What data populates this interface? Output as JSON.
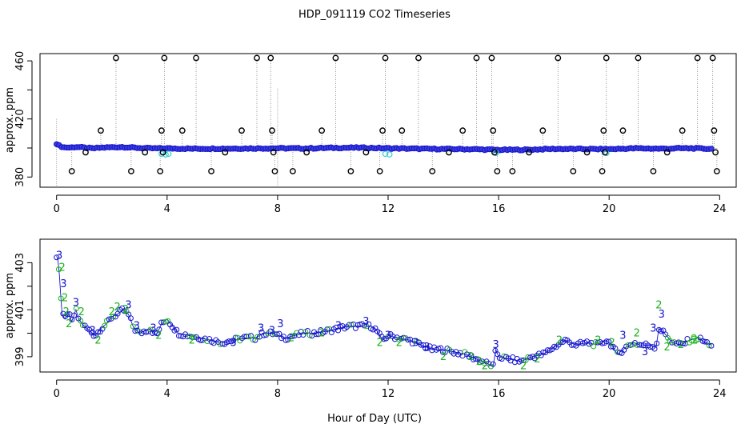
{
  "chart_data": {
    "title": "HDP_091119  CO2 Timeseries",
    "xlabel": "Hour of Day (UTC)",
    "colors": {
      "series_main": "#1414cc",
      "series_alt": "#19b419",
      "series_cyan": "#33cccc",
      "outlier": "#000000",
      "dotted_line": "#888888"
    },
    "panels": [
      {
        "type": "scatter",
        "name": "overview",
        "ylabel": "approx. ppm",
        "xlim": [
          -0.6,
          24.6
        ],
        "ylim": [
          373,
          465
        ],
        "x_ticks": [
          0,
          4,
          8,
          12,
          16,
          20,
          24
        ],
        "y_ticks": [
          380,
          420,
          460
        ],
        "y_minor_ticks": [
          400,
          440
        ],
        "trace_points": [
          [
            0,
            403
          ],
          [
            0.1,
            401.5
          ],
          [
            0.25,
            400.5
          ],
          [
            0.5,
            400.3
          ],
          [
            0.7,
            400.8
          ],
          [
            1.0,
            400.2
          ],
          [
            1.3,
            399.7
          ],
          [
            1.6,
            400.2
          ],
          [
            2.0,
            400.5
          ],
          [
            2.4,
            400.7
          ],
          [
            2.8,
            400.2
          ],
          [
            3.3,
            399.8
          ],
          [
            3.7,
            399.7
          ],
          [
            4.0,
            399.8
          ],
          [
            4.4,
            399.6
          ],
          [
            5.0,
            399.5
          ],
          [
            6.0,
            399.6
          ],
          [
            7.0,
            399.7
          ],
          [
            8.0,
            399.8
          ],
          [
            9.0,
            399.7
          ],
          [
            10.0,
            400.1
          ],
          [
            11.0,
            400.2
          ],
          [
            12.0,
            399.8
          ],
          [
            13.0,
            399.5
          ],
          [
            14.0,
            399.3
          ],
          [
            15.0,
            399.2
          ],
          [
            15.6,
            398.9
          ],
          [
            16.0,
            398.7
          ],
          [
            17.0,
            398.8
          ],
          [
            18.0,
            399.4
          ],
          [
            19.0,
            399.3
          ],
          [
            20.0,
            399.2
          ],
          [
            21.0,
            399.8
          ],
          [
            21.5,
            399.6
          ],
          [
            22.0,
            399.5
          ],
          [
            22.5,
            399.8
          ],
          [
            23.0,
            399.8
          ],
          [
            23.7,
            399.4
          ]
        ],
        "cyan_points": [
          [
            3.8,
            396
          ],
          [
            3.95,
            395.5
          ],
          [
            4.05,
            396
          ],
          [
            11.9,
            396
          ],
          [
            12.05,
            395.6
          ],
          [
            15.9,
            396.5
          ],
          [
            19.9,
            396.5
          ]
        ],
        "outliers": [
          [
            0.55,
            384
          ],
          [
            1.05,
            397
          ],
          [
            1.6,
            412
          ],
          [
            2.15,
            462
          ],
          [
            2.7,
            384
          ],
          [
            3.2,
            397
          ],
          [
            3.75,
            384
          ],
          [
            3.85,
            397
          ],
          [
            3.8,
            412
          ],
          [
            3.9,
            462
          ],
          [
            4.55,
            412
          ],
          [
            5.05,
            462
          ],
          [
            5.6,
            384
          ],
          [
            6.1,
            397
          ],
          [
            6.7,
            412
          ],
          [
            7.25,
            462
          ],
          [
            7.75,
            462
          ],
          [
            7.8,
            412
          ],
          [
            7.85,
            397
          ],
          [
            7.9,
            384
          ],
          [
            8.55,
            384
          ],
          [
            9.05,
            397
          ],
          [
            9.6,
            412
          ],
          [
            10.1,
            462
          ],
          [
            10.65,
            384
          ],
          [
            11.2,
            397
          ],
          [
            11.7,
            384
          ],
          [
            11.8,
            412
          ],
          [
            11.9,
            462
          ],
          [
            12.5,
            412
          ],
          [
            13.1,
            462
          ],
          [
            13.6,
            384
          ],
          [
            14.2,
            397
          ],
          [
            14.7,
            412
          ],
          [
            15.2,
            462
          ],
          [
            15.75,
            462
          ],
          [
            15.8,
            412
          ],
          [
            15.85,
            397
          ],
          [
            15.95,
            384
          ],
          [
            16.5,
            384
          ],
          [
            17.1,
            397
          ],
          [
            17.6,
            412
          ],
          [
            18.15,
            462
          ],
          [
            18.7,
            384
          ],
          [
            19.2,
            397
          ],
          [
            19.75,
            384
          ],
          [
            19.8,
            412
          ],
          [
            19.85,
            397
          ],
          [
            19.9,
            462
          ],
          [
            20.5,
            412
          ],
          [
            21.05,
            462
          ],
          [
            21.6,
            384
          ],
          [
            22.1,
            397
          ],
          [
            22.65,
            412
          ],
          [
            23.2,
            462
          ],
          [
            23.75,
            462
          ],
          [
            23.8,
            412
          ],
          [
            23.85,
            397
          ],
          [
            23.9,
            384
          ]
        ]
      },
      {
        "type": "scatter",
        "name": "detail",
        "ylabel": "approx. ppm",
        "xlim": [
          -0.6,
          24.6
        ],
        "ylim": [
          398.35,
          404.0
        ],
        "x_ticks": [
          0,
          4,
          8,
          12,
          16,
          20,
          24
        ],
        "y_ticks": [
          399,
          401,
          403
        ],
        "y_minor_ticks": [
          400,
          402
        ],
        "trace_points": [
          [
            0.0,
            403.3
          ],
          [
            0.05,
            403.1
          ],
          [
            0.1,
            402.5
          ],
          [
            0.15,
            401.6
          ],
          [
            0.2,
            400.8
          ],
          [
            0.3,
            400.6
          ],
          [
            0.4,
            400.9
          ],
          [
            0.55,
            400.5
          ],
          [
            0.7,
            401.0
          ],
          [
            0.8,
            400.6
          ],
          [
            1.0,
            400.3
          ],
          [
            1.2,
            400.1
          ],
          [
            1.4,
            399.9
          ],
          [
            1.6,
            400.2
          ],
          [
            1.8,
            400.4
          ],
          [
            2.0,
            400.7
          ],
          [
            2.2,
            400.8
          ],
          [
            2.4,
            401.0
          ],
          [
            2.6,
            400.8
          ],
          [
            2.8,
            400.2
          ],
          [
            3.0,
            400.0
          ],
          [
            3.2,
            400.1
          ],
          [
            3.4,
            400.2
          ],
          [
            3.6,
            399.9
          ],
          [
            3.8,
            400.4
          ],
          [
            4.0,
            400.6
          ],
          [
            4.2,
            400.3
          ],
          [
            4.4,
            400.0
          ],
          [
            4.8,
            399.9
          ],
          [
            5.2,
            399.8
          ],
          [
            5.6,
            399.7
          ],
          [
            6.0,
            399.6
          ],
          [
            6.4,
            399.7
          ],
          [
            6.8,
            399.8
          ],
          [
            7.2,
            399.8
          ],
          [
            7.5,
            400.0
          ],
          [
            7.8,
            400.0
          ],
          [
            8.0,
            399.9
          ],
          [
            8.3,
            399.8
          ],
          [
            8.6,
            399.9
          ],
          [
            9.0,
            400.0
          ],
          [
            9.4,
            400.0
          ],
          [
            9.8,
            400.1
          ],
          [
            10.2,
            400.2
          ],
          [
            10.6,
            400.3
          ],
          [
            11.0,
            400.3
          ],
          [
            11.4,
            400.3
          ],
          [
            11.6,
            400.1
          ],
          [
            11.8,
            399.7
          ],
          [
            12.0,
            399.9
          ],
          [
            12.4,
            399.8
          ],
          [
            12.8,
            399.7
          ],
          [
            13.2,
            399.5
          ],
          [
            13.6,
            399.3
          ],
          [
            14.0,
            399.3
          ],
          [
            14.4,
            399.2
          ],
          [
            14.8,
            399.1
          ],
          [
            15.2,
            398.9
          ],
          [
            15.6,
            398.7
          ],
          [
            15.8,
            398.6
          ],
          [
            15.9,
            399.3
          ],
          [
            16.0,
            399.0
          ],
          [
            16.4,
            398.9
          ],
          [
            16.8,
            398.8
          ],
          [
            17.2,
            399.0
          ],
          [
            17.6,
            399.1
          ],
          [
            18.0,
            399.4
          ],
          [
            18.4,
            399.7
          ],
          [
            18.8,
            399.5
          ],
          [
            19.2,
            399.6
          ],
          [
            19.6,
            399.5
          ],
          [
            19.9,
            399.7
          ],
          [
            20.1,
            399.5
          ],
          [
            20.3,
            399.1
          ],
          [
            20.6,
            399.4
          ],
          [
            20.9,
            399.6
          ],
          [
            21.1,
            399.5
          ],
          [
            21.4,
            399.5
          ],
          [
            21.7,
            399.4
          ],
          [
            21.8,
            400.2
          ],
          [
            22.0,
            400.0
          ],
          [
            22.3,
            399.6
          ],
          [
            22.6,
            399.5
          ],
          [
            22.9,
            399.7
          ],
          [
            23.2,
            399.8
          ],
          [
            23.5,
            399.6
          ],
          [
            23.7,
            399.5
          ]
        ],
        "label_points": [
          [
            0.1,
            403.3,
            "3"
          ],
          [
            0.2,
            402.8,
            "2"
          ],
          [
            0.25,
            402.1,
            "3"
          ],
          [
            0.3,
            401.5,
            "2"
          ],
          [
            0.35,
            400.9,
            "2"
          ],
          [
            0.45,
            400.4,
            "2"
          ],
          [
            0.7,
            401.3,
            "3"
          ],
          [
            0.9,
            400.9,
            "2"
          ],
          [
            1.3,
            400.1,
            "3"
          ],
          [
            1.5,
            399.7,
            "2"
          ],
          [
            2.0,
            400.9,
            "2"
          ],
          [
            2.2,
            401.1,
            "2"
          ],
          [
            2.5,
            401.0,
            "2"
          ],
          [
            2.6,
            401.2,
            "3"
          ],
          [
            2.9,
            400.3,
            "3"
          ],
          [
            3.5,
            400.2,
            "3"
          ],
          [
            3.7,
            399.9,
            "2"
          ],
          [
            4.9,
            399.7,
            "2"
          ],
          [
            6.4,
            399.6,
            "3"
          ],
          [
            7.4,
            400.2,
            "3"
          ],
          [
            7.8,
            400.1,
            "3"
          ],
          [
            8.1,
            400.4,
            "3"
          ],
          [
            8.5,
            399.8,
            "2"
          ],
          [
            9.6,
            400.0,
            "2"
          ],
          [
            10.2,
            400.3,
            "3"
          ],
          [
            11.2,
            400.5,
            "3"
          ],
          [
            11.7,
            399.6,
            "2"
          ],
          [
            12.0,
            399.9,
            "3"
          ],
          [
            12.4,
            399.6,
            "2"
          ],
          [
            13.0,
            399.6,
            "3"
          ],
          [
            13.4,
            399.4,
            "3"
          ],
          [
            14.0,
            399.0,
            "2"
          ],
          [
            15.0,
            399.0,
            "2"
          ],
          [
            15.3,
            398.8,
            "2"
          ],
          [
            15.5,
            398.6,
            "2"
          ],
          [
            15.9,
            399.5,
            "3"
          ],
          [
            16.9,
            398.6,
            "2"
          ],
          [
            17.4,
            398.9,
            "2"
          ],
          [
            18.2,
            399.7,
            "2"
          ],
          [
            19.6,
            399.7,
            "2"
          ],
          [
            20.1,
            399.6,
            "2"
          ],
          [
            20.5,
            399.9,
            "3"
          ],
          [
            21.0,
            400.0,
            "2"
          ],
          [
            21.3,
            399.2,
            "3"
          ],
          [
            21.6,
            400.2,
            "3"
          ],
          [
            21.8,
            401.2,
            "2"
          ],
          [
            21.9,
            400.8,
            "3"
          ],
          [
            22.1,
            399.4,
            "2"
          ],
          [
            22.6,
            399.5,
            "2"
          ],
          [
            23.1,
            399.7,
            "2"
          ]
        ]
      }
    ]
  }
}
